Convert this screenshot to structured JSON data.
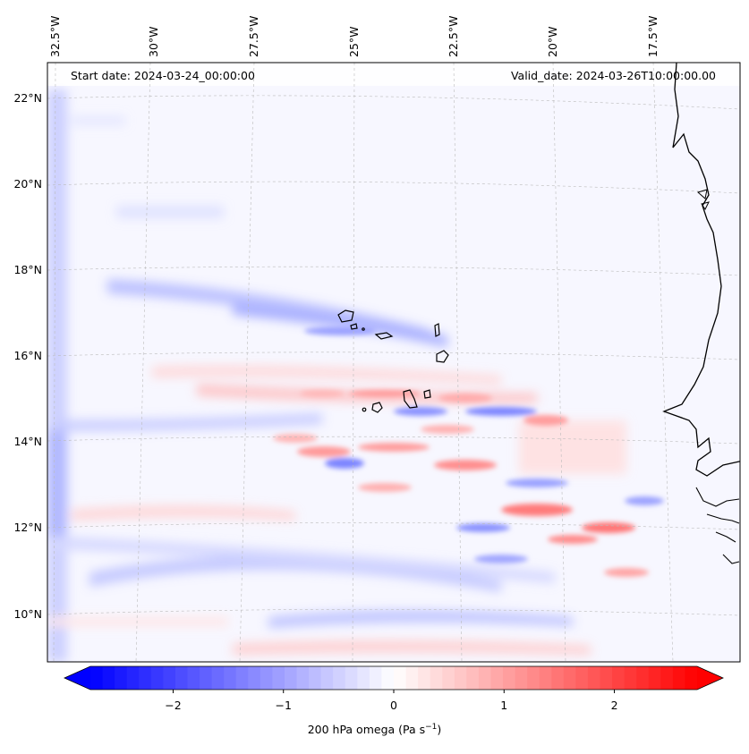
{
  "map": {
    "start_date_text": "Start date: 2024-03-24_00:00:00",
    "valid_date_text": "Valid_date: 2024-03-26T10:00:00.00",
    "lon_labels": [
      "32.5°W",
      "30°W",
      "27.5°W",
      "25°W",
      "22.5°W",
      "20°W",
      "17.5°W"
    ],
    "lat_labels": [
      "22°N",
      "20°N",
      "18°N",
      "16°N",
      "14°N",
      "12°N",
      "10°N"
    ],
    "lat_range": [
      8.9,
      22.7
    ],
    "lon_range": [
      -33.6,
      -16.0
    ],
    "islands": [
      "Santo Antão",
      "São Vicente",
      "São Nicolau",
      "Sal",
      "Boa Vista",
      "Maio",
      "Santiago",
      "Fogo",
      "Brava"
    ],
    "coastline": "West Africa (Mauritania, Senegal, The Gambia, Guinea-Bissau)"
  },
  "colorbar": {
    "label_main": "200 hPa omega (Pa s",
    "label_sup": "−1",
    "label_end": ")",
    "ticks": [
      "−2",
      "−1",
      "0",
      "1",
      "2"
    ],
    "range": [
      -2.75,
      2.75
    ],
    "extend": "both",
    "colormap": "bwr",
    "colors": {
      "min": "#0000ff",
      "mid": "#ffffff",
      "max": "#ff0000"
    }
  }
}
